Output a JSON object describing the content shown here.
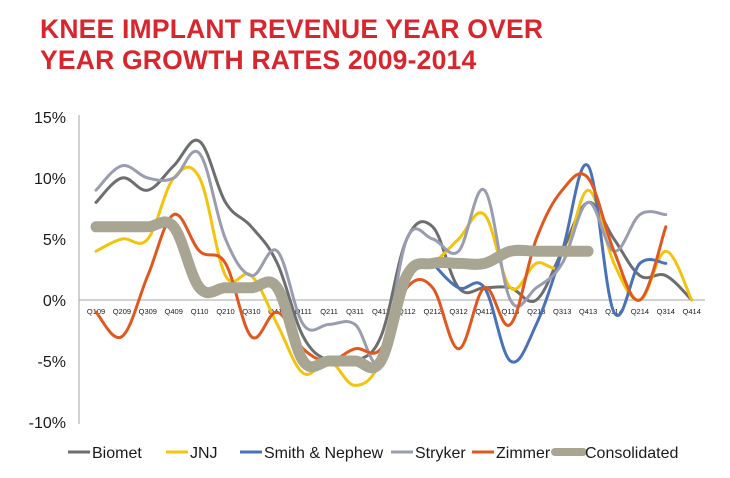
{
  "chart_data": {
    "type": "line",
    "title": "KNEE IMPLANT REVENUE YEAR OVER YEAR GROWTH RATES 2009-2014",
    "title_lines": [
      "KNEE IMPLANT REVENUE YEAR OVER",
      "YEAR GROWTH RATES 2009-2014"
    ],
    "xlabel": "",
    "ylabel": "",
    "ylim": [
      -10,
      15
    ],
    "yticks": [
      15,
      10,
      5,
      0,
      -5,
      -10
    ],
    "ytick_labels": [
      "15%",
      "10%",
      "5%",
      "0%",
      "-5%",
      "-10%"
    ],
    "x": [
      "Q109",
      "Q209",
      "Q309",
      "Q409",
      "Q110",
      "Q210",
      "Q310",
      "Q410",
      "Q111",
      "Q211",
      "Q311",
      "Q411",
      "Q112",
      "Q212",
      "Q312",
      "Q412",
      "Q113",
      "Q213",
      "Q313",
      "Q413",
      "Q114",
      "Q214",
      "Q314",
      "Q414"
    ],
    "grid": false,
    "legend_position": "bottom",
    "series": [
      {
        "name": "Biomet",
        "color": "#6d6e70",
        "values": [
          8,
          10,
          9,
          11,
          13,
          8,
          6,
          3,
          -3,
          -5,
          -5,
          -3,
          5,
          6,
          1,
          1,
          1,
          0,
          4,
          8,
          5,
          2,
          2,
          0
        ]
      },
      {
        "name": "JNJ",
        "color": "#f2c40f",
        "values": [
          4,
          5,
          5,
          10,
          10,
          2,
          2,
          -2,
          -6,
          -5,
          -7,
          -5,
          2,
          3,
          5,
          7,
          1,
          3,
          3,
          9,
          3,
          0,
          4,
          0
        ]
      },
      {
        "name": "Smith & Nephew",
        "color": "#4a72b8",
        "values": [
          null,
          null,
          null,
          null,
          null,
          null,
          null,
          null,
          null,
          null,
          null,
          null,
          null,
          3,
          1,
          1,
          -5,
          -2,
          4,
          11,
          -1,
          3,
          3,
          null
        ]
      },
      {
        "name": "Stryker",
        "color": "#9a9db0",
        "values": [
          9,
          11,
          10,
          10,
          12,
          5,
          2,
          4,
          -2,
          -2,
          -2,
          -5,
          5,
          5,
          4,
          9,
          0,
          1,
          3,
          8,
          4,
          7,
          7,
          null
        ]
      },
      {
        "name": "Zimmer",
        "color": "#e0581f",
        "values": [
          -1,
          -3,
          2,
          7,
          4,
          3,
          -3,
          -1,
          -4,
          -5,
          -4,
          -4,
          1,
          1,
          -4,
          1,
          -2,
          5,
          9,
          10,
          4,
          0,
          6,
          null
        ]
      },
      {
        "name": "Consolidated",
        "color": "#a8a692",
        "values": [
          6,
          6,
          6,
          6,
          1,
          1,
          1,
          1,
          -5,
          -5,
          -5,
          -5,
          2,
          3,
          3,
          3,
          4,
          4,
          4,
          4,
          null,
          null,
          null,
          null
        ]
      }
    ]
  }
}
